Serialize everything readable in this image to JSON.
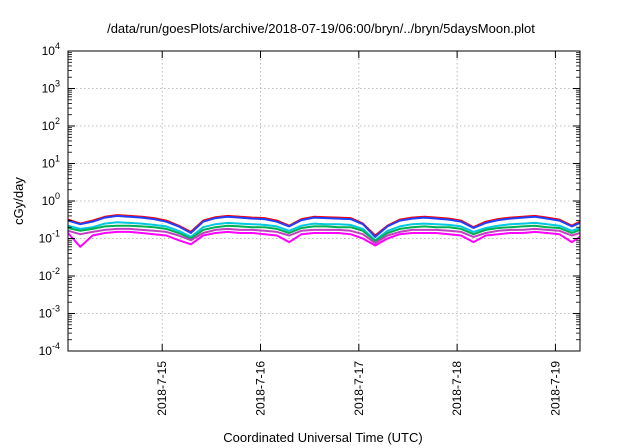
{
  "chart_data": {
    "type": "line",
    "title": "/data/run/goesPlots/archive/2018-07-19/06:00/bryn/../bryn/5daysMoon.plot",
    "xlabel": "Coordinated Universal Time (UTC)",
    "ylabel": "cGy/day",
    "y_scale": "log",
    "ylim": [
      0.0001,
      10000
    ],
    "y_ticks": [
      {
        "base": "10",
        "exp": "-4",
        "value": 0.0001
      },
      {
        "base": "10",
        "exp": "-3",
        "value": 0.001
      },
      {
        "base": "10",
        "exp": "-2",
        "value": 0.01
      },
      {
        "base": "10",
        "exp": "-1",
        "value": 0.1
      },
      {
        "base": "10",
        "exp": "0",
        "value": 1
      },
      {
        "base": "10",
        "exp": "1",
        "value": 10
      },
      {
        "base": "10",
        "exp": "2",
        "value": 100
      },
      {
        "base": "10",
        "exp": "3",
        "value": 1000
      },
      {
        "base": "10",
        "exp": "4",
        "value": 10000
      }
    ],
    "xlim": [
      "2018-07-14 01:00",
      "2018-07-19 06:00"
    ],
    "x_ticks": [
      {
        "label": "2018-7-15",
        "date": "2018-07-15"
      },
      {
        "label": "2018-7-16",
        "date": "2018-07-16"
      },
      {
        "label": "2018-7-17",
        "date": "2018-07-17"
      },
      {
        "label": "2018-7-18",
        "date": "2018-07-18"
      },
      {
        "label": "2018-7-19",
        "date": "2018-07-19"
      }
    ],
    "grid": true,
    "legend": "none",
    "x": [
      "2018-07-14 01:00",
      "2018-07-14 04:00",
      "2018-07-14 07:00",
      "2018-07-14 10:00",
      "2018-07-14 13:00",
      "2018-07-14 16:00",
      "2018-07-14 19:00",
      "2018-07-14 22:00",
      "2018-07-15 01:00",
      "2018-07-15 04:00",
      "2018-07-15 07:00",
      "2018-07-15 10:00",
      "2018-07-15 13:00",
      "2018-07-15 16:00",
      "2018-07-15 19:00",
      "2018-07-15 22:00",
      "2018-07-16 01:00",
      "2018-07-16 04:00",
      "2018-07-16 07:00",
      "2018-07-16 10:00",
      "2018-07-16 13:00",
      "2018-07-16 16:00",
      "2018-07-16 19:00",
      "2018-07-16 22:00",
      "2018-07-17 01:00",
      "2018-07-17 04:00",
      "2018-07-17 07:00",
      "2018-07-17 10:00",
      "2018-07-17 13:00",
      "2018-07-17 16:00",
      "2018-07-17 19:00",
      "2018-07-17 22:00",
      "2018-07-18 01:00",
      "2018-07-18 04:00",
      "2018-07-18 07:00",
      "2018-07-18 10:00",
      "2018-07-18 13:00",
      "2018-07-18 16:00",
      "2018-07-18 19:00",
      "2018-07-18 22:00",
      "2018-07-19 01:00",
      "2018-07-19 04:00",
      "2018-07-19 06:00"
    ],
    "series": [
      {
        "color": "#ff0000",
        "values": [
          0.32,
          0.25,
          0.3,
          0.38,
          0.42,
          0.4,
          0.38,
          0.35,
          0.3,
          0.22,
          0.15,
          0.3,
          0.37,
          0.4,
          0.38,
          0.36,
          0.35,
          0.3,
          0.22,
          0.33,
          0.38,
          0.37,
          0.36,
          0.35,
          0.25,
          0.12,
          0.22,
          0.32,
          0.36,
          0.38,
          0.36,
          0.34,
          0.3,
          0.2,
          0.28,
          0.33,
          0.36,
          0.38,
          0.4,
          0.36,
          0.32,
          0.22,
          0.28
        ]
      },
      {
        "color": "#2040ff",
        "values": [
          0.3,
          0.24,
          0.28,
          0.36,
          0.4,
          0.38,
          0.36,
          0.33,
          0.28,
          0.21,
          0.14,
          0.28,
          0.35,
          0.38,
          0.36,
          0.34,
          0.33,
          0.28,
          0.21,
          0.31,
          0.36,
          0.35,
          0.34,
          0.33,
          0.24,
          0.11,
          0.21,
          0.3,
          0.34,
          0.36,
          0.34,
          0.32,
          0.28,
          0.19,
          0.26,
          0.31,
          0.34,
          0.36,
          0.38,
          0.34,
          0.3,
          0.21,
          0.26
        ]
      },
      {
        "color": "#00c8e0",
        "values": [
          0.22,
          0.18,
          0.2,
          0.25,
          0.27,
          0.26,
          0.25,
          0.23,
          0.21,
          0.16,
          0.11,
          0.2,
          0.24,
          0.26,
          0.25,
          0.24,
          0.23,
          0.21,
          0.16,
          0.22,
          0.25,
          0.24,
          0.24,
          0.23,
          0.18,
          0.09,
          0.16,
          0.21,
          0.24,
          0.25,
          0.24,
          0.23,
          0.21,
          0.15,
          0.19,
          0.22,
          0.24,
          0.25,
          0.26,
          0.24,
          0.22,
          0.16,
          0.19
        ]
      },
      {
        "color": "#00b050",
        "values": [
          0.19,
          0.16,
          0.18,
          0.21,
          0.22,
          0.22,
          0.21,
          0.2,
          0.18,
          0.14,
          0.1,
          0.17,
          0.2,
          0.22,
          0.21,
          0.2,
          0.2,
          0.18,
          0.14,
          0.19,
          0.21,
          0.21,
          0.2,
          0.2,
          0.16,
          0.085,
          0.14,
          0.18,
          0.2,
          0.21,
          0.2,
          0.2,
          0.18,
          0.13,
          0.17,
          0.19,
          0.2,
          0.21,
          0.22,
          0.2,
          0.19,
          0.14,
          0.17
        ]
      },
      {
        "color": "#c040c0",
        "values": [
          0.16,
          0.13,
          0.15,
          0.17,
          0.18,
          0.18,
          0.17,
          0.16,
          0.15,
          0.12,
          0.09,
          0.14,
          0.17,
          0.18,
          0.17,
          0.17,
          0.16,
          0.15,
          0.12,
          0.16,
          0.17,
          0.17,
          0.17,
          0.16,
          0.13,
          0.075,
          0.12,
          0.15,
          0.17,
          0.17,
          0.17,
          0.16,
          0.15,
          0.11,
          0.14,
          0.16,
          0.17,
          0.17,
          0.18,
          0.17,
          0.16,
          0.12,
          0.14
        ]
      },
      {
        "color": "#ff00ff",
        "values": [
          0.14,
          0.06,
          0.12,
          0.14,
          0.15,
          0.15,
          0.14,
          0.13,
          0.12,
          0.09,
          0.07,
          0.12,
          0.14,
          0.15,
          0.14,
          0.14,
          0.13,
          0.12,
          0.08,
          0.13,
          0.14,
          0.14,
          0.14,
          0.13,
          0.1,
          0.065,
          0.1,
          0.13,
          0.14,
          0.14,
          0.14,
          0.13,
          0.12,
          0.08,
          0.12,
          0.13,
          0.14,
          0.14,
          0.15,
          0.14,
          0.13,
          0.08,
          0.11
        ]
      }
    ]
  }
}
